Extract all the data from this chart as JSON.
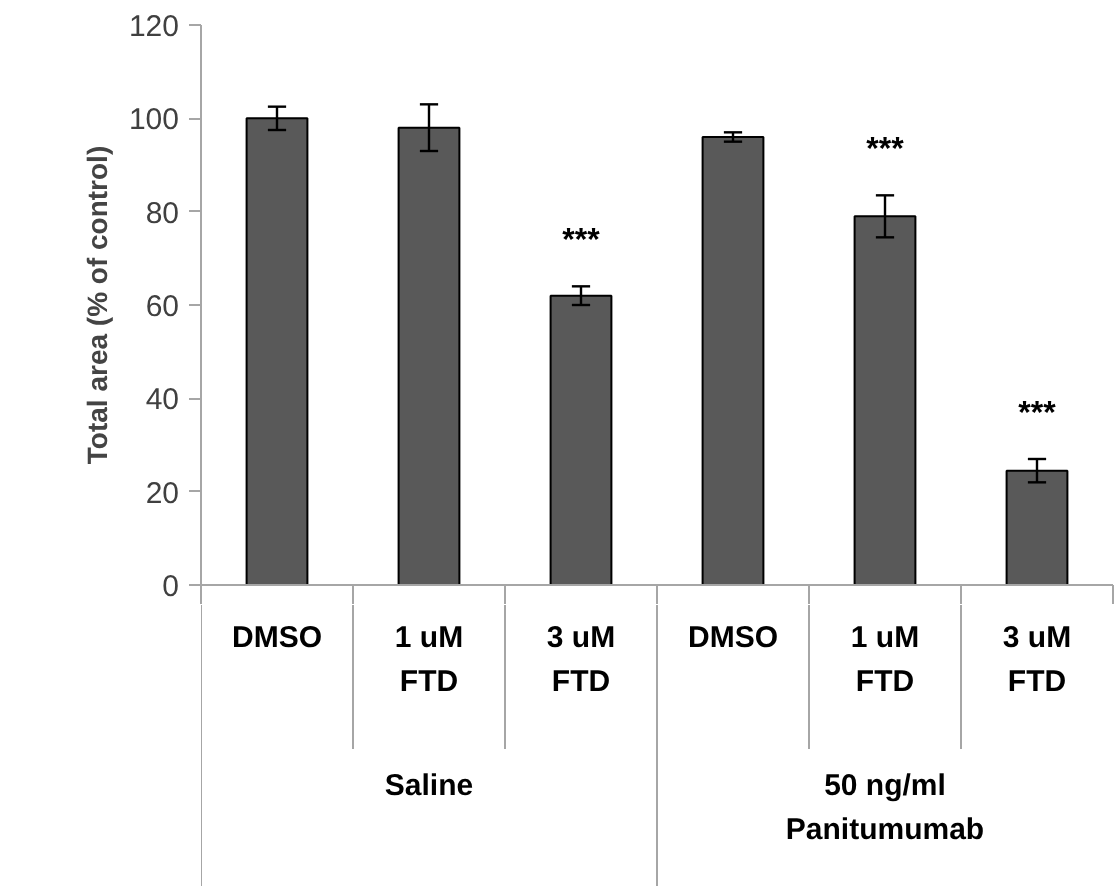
{
  "chart_data": {
    "type": "bar",
    "ylabel": "Total area (% of control)",
    "categories": [
      "DMSO",
      "1 uM\nFTD",
      "3 uM\nFTD",
      "DMSO",
      "1 uM\nFTD",
      "3 uM\nFTD"
    ],
    "values": [
      100,
      98,
      62,
      96,
      79,
      24.5
    ],
    "errors": [
      2.5,
      5,
      2,
      1,
      4.5,
      2.5
    ],
    "value_labels": [
      null,
      null,
      "***",
      null,
      "***",
      "***"
    ],
    "color": "#595959",
    "ylim": [
      0,
      120
    ],
    "yticks": [
      0,
      20,
      40,
      60,
      80,
      100,
      120
    ],
    "grid": false,
    "annotations": [
      "Saline",
      "50 ng/ml\nPanitumumab"
    ]
  }
}
